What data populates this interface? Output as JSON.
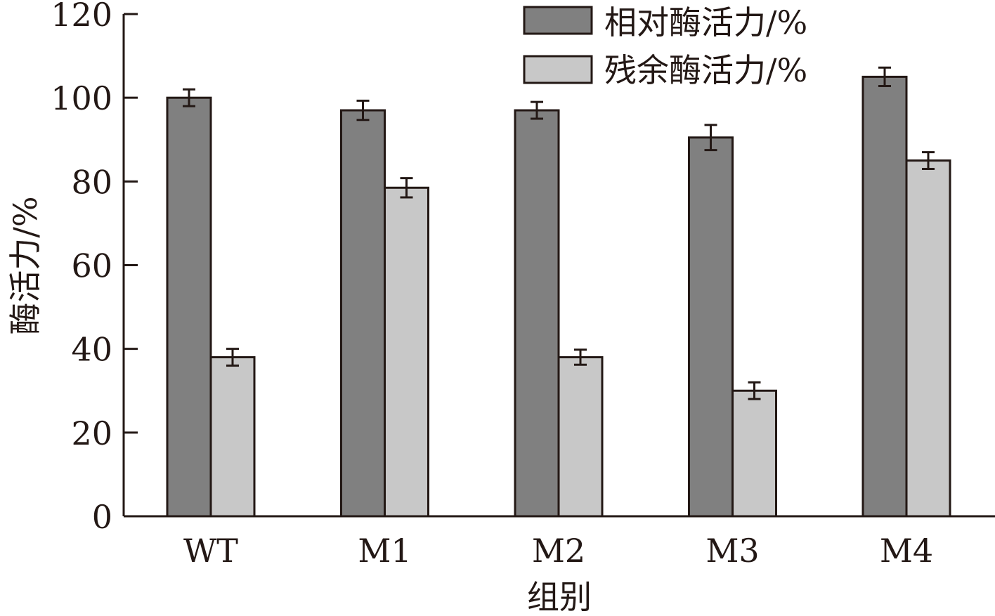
{
  "chart_data": {
    "type": "bar",
    "title": "",
    "xlabel": "组别",
    "ylabel": "酶活力/%",
    "ylim": [
      0,
      120
    ],
    "yticks": [
      0,
      20,
      40,
      60,
      80,
      100,
      120
    ],
    "categories": [
      "WT",
      "M1",
      "M2",
      "M3",
      "M4"
    ],
    "legend_position": "top-right",
    "series": [
      {
        "name": "相对酶活力/%",
        "color": "#808080",
        "values": [
          100,
          97,
          97,
          90.5,
          105
        ],
        "errors": [
          2,
          2.3,
          2,
          3,
          2.2
        ]
      },
      {
        "name": "残余酶活力/%",
        "color": "#c8c8c8",
        "values": [
          38,
          78.5,
          38,
          30,
          85
        ],
        "errors": [
          2,
          2.3,
          1.8,
          2,
          2
        ]
      }
    ]
  }
}
